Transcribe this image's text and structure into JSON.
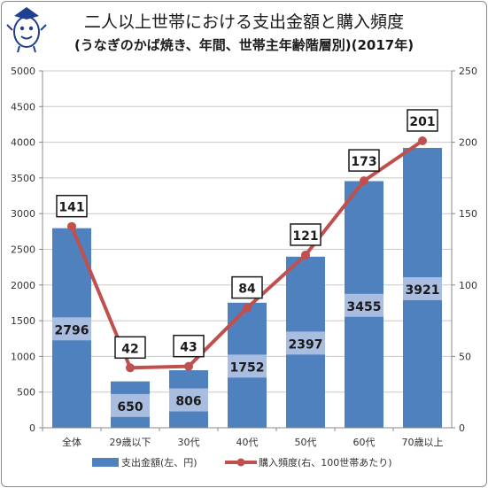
{
  "title": "二人以上世帯における支出金額と購入頻度",
  "subtitle": "(うなぎのかば焼き、年間、世帯主年齢階層別)(2017年)",
  "legend": {
    "bar": "支出金額(左、円)",
    "line": "購入頻度(右、100世帯あたり)"
  },
  "chart_data": {
    "type": "bar",
    "categories": [
      "全体",
      "29歳以下",
      "30代",
      "40代",
      "50代",
      "60代",
      "70歳以上"
    ],
    "series": [
      {
        "name": "支出金額(左、円)",
        "type": "bar",
        "axis": "left",
        "values": [
          2796,
          650,
          806,
          1752,
          2397,
          3455,
          3921
        ],
        "labels": [
          "2796",
          "650",
          "806",
          "1752",
          "2397",
          "3455",
          "3921"
        ]
      },
      {
        "name": "購入頻度(右、100世帯あたり)",
        "type": "line",
        "axis": "right",
        "values": [
          141,
          42,
          43,
          84,
          121,
          173,
          201
        ],
        "labels": [
          "141",
          "42",
          "43",
          "84",
          "121",
          "173",
          "201"
        ]
      }
    ],
    "ylim_left": [
      0,
      5000
    ],
    "yticks_left": [
      "0",
      "500",
      "1000",
      "1500",
      "2000",
      "2500",
      "3000",
      "3500",
      "4000",
      "4500",
      "5000"
    ],
    "ylim_right": [
      0,
      250
    ],
    "yticks_right": [
      "0",
      "50",
      "100",
      "150",
      "200",
      "250"
    ],
    "grid": true,
    "legend_position": "bottom"
  },
  "colors": {
    "bar": "#4e81bd",
    "bar_label_bg": "#a9bde0",
    "line": "#c0504d",
    "grid": "#c8c8c8"
  }
}
